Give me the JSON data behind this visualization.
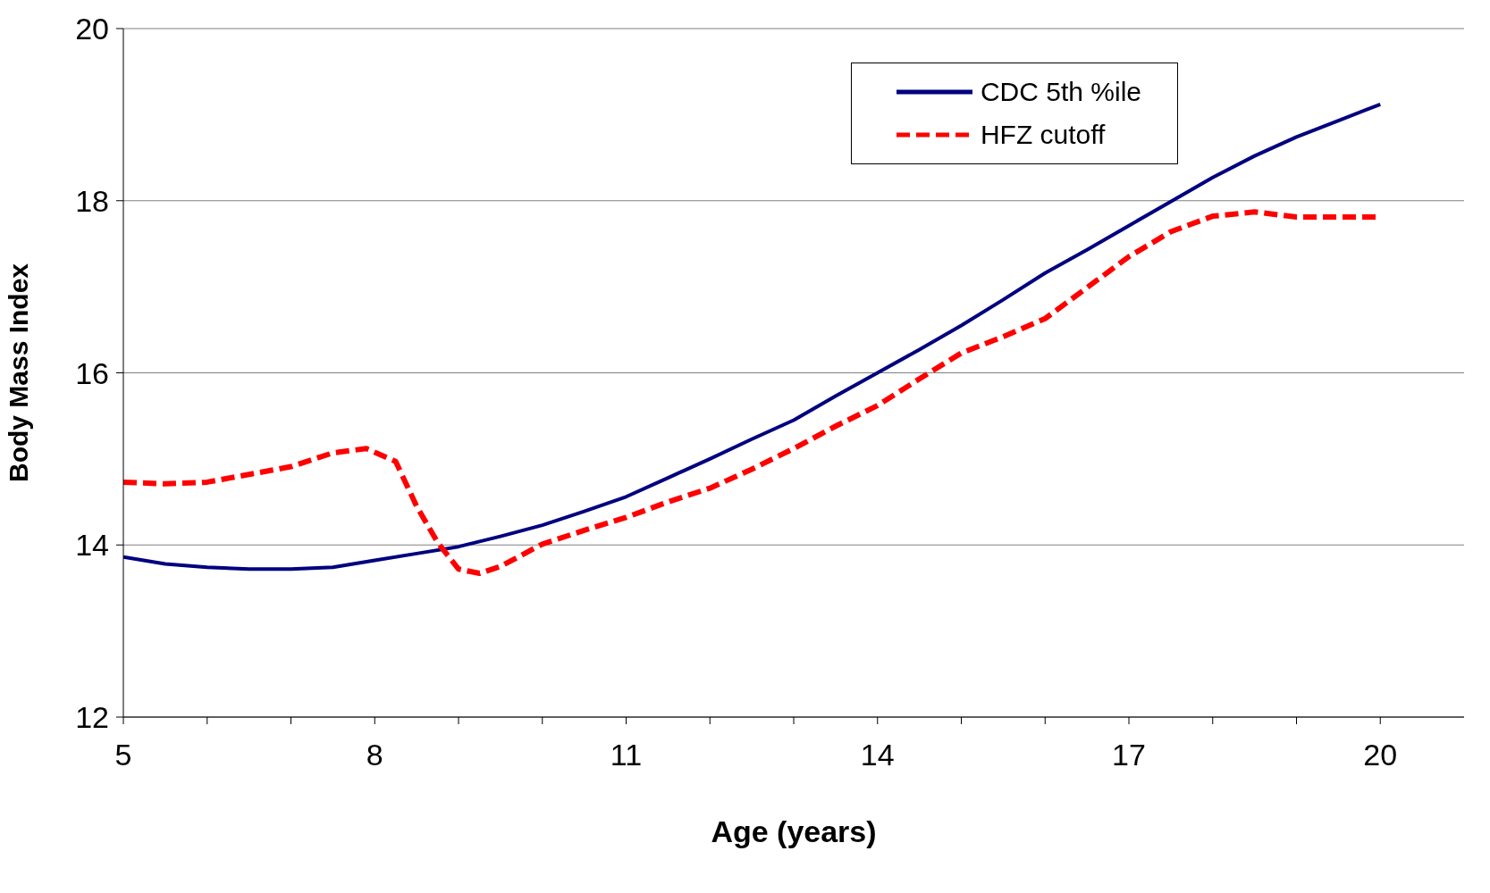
{
  "chart_data": {
    "type": "line",
    "xlabel": "Age (years)",
    "ylabel": "Body Mass Index",
    "xlim": [
      5,
      21
    ],
    "xticks": [
      5,
      {
        "value": 6,
        "label": null
      },
      {
        "value": 7,
        "label": null
      },
      8,
      {
        "value": 9,
        "label": null
      },
      {
        "value": 10,
        "label": null
      },
      11,
      {
        "value": 12,
        "label": null
      },
      {
        "value": 13,
        "label": null
      },
      14,
      {
        "value": 15,
        "label": null
      },
      {
        "value": 16,
        "label": null
      },
      17,
      {
        "value": 18,
        "label": null
      },
      {
        "value": 19,
        "label": null
      },
      20
    ],
    "ylim": [
      12,
      20
    ],
    "yticks": [
      12,
      14,
      16,
      18,
      20
    ],
    "grid": "y",
    "legend": "top right",
    "marker": "none",
    "series": [
      {
        "name": "CDC 5th %ile",
        "color": "#000080",
        "line_style": "solid",
        "x": [
          5,
          5.5,
          6,
          6.5,
          7,
          7.5,
          8,
          8.5,
          9,
          9.5,
          10,
          10.5,
          11,
          11.5,
          12,
          12.5,
          13,
          13.5,
          14,
          14.5,
          15,
          15.5,
          16,
          16.5,
          17,
          17.5,
          18,
          18.5,
          19,
          19.5,
          20
        ],
        "values": [
          13.86,
          13.78,
          13.74,
          13.72,
          13.72,
          13.74,
          13.82,
          13.9,
          13.98,
          14.1,
          14.23,
          14.39,
          14.56,
          14.78,
          15.0,
          15.23,
          15.45,
          15.73,
          16.0,
          16.27,
          16.55,
          16.85,
          17.16,
          17.43,
          17.71,
          17.99,
          18.27,
          18.52,
          18.74,
          18.93,
          19.12
        ]
      },
      {
        "name": "HFZ cutoff",
        "color": "#ff0000",
        "line_style": "dashed",
        "x": [
          5,
          5.5,
          6,
          6.5,
          7,
          7.5,
          7.9,
          8.25,
          8.5,
          8.75,
          9,
          9.25,
          9.5,
          10,
          10.5,
          11,
          11.5,
          12,
          12.5,
          13,
          13.5,
          14,
          14.5,
          15,
          15.5,
          16,
          16.5,
          17,
          17.5,
          18,
          18.5,
          19,
          19.5,
          20
        ],
        "values": [
          14.73,
          14.71,
          14.73,
          14.82,
          14.91,
          15.07,
          15.12,
          14.97,
          14.45,
          14.03,
          13.72,
          13.67,
          13.75,
          14.01,
          14.17,
          14.32,
          14.5,
          14.66,
          14.88,
          15.12,
          15.38,
          15.62,
          15.93,
          16.23,
          16.42,
          16.63,
          16.99,
          17.35,
          17.64,
          17.82,
          17.87,
          17.81,
          17.81,
          17.81
        ]
      }
    ]
  }
}
